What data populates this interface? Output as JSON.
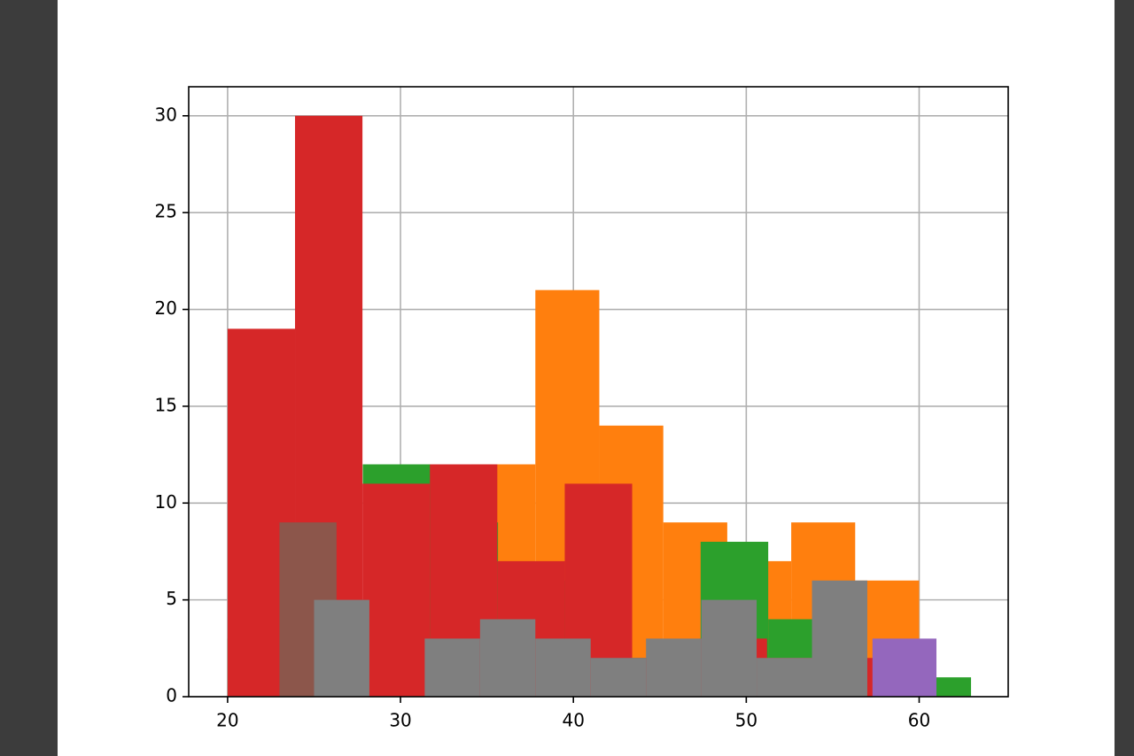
{
  "chart_data": {
    "type": "histogram",
    "xlim": [
      17.75,
      65.15
    ],
    "ylim": [
      0,
      31.5
    ],
    "xticks": [
      20,
      30,
      40,
      50,
      60
    ],
    "yticks": [
      0,
      5,
      10,
      15,
      20,
      25,
      30
    ],
    "grid": true,
    "series": [
      {
        "color": "#ff7f0e",
        "bins": [
          23,
          26.7,
          30.4,
          34.1,
          37.8,
          41.5,
          45.2,
          48.9,
          52.6,
          56.3,
          60
        ],
        "values": [
          2,
          4,
          6,
          12,
          21,
          14,
          9,
          7,
          9,
          6
        ]
      },
      {
        "color": "#2ca02c",
        "bins": [
          20,
          23.91,
          27.82,
          31.73,
          35.64,
          39.55,
          43.45,
          47.36,
          51.27,
          55.18,
          59.09,
          63
        ],
        "values": [
          3,
          5,
          12,
          9,
          6,
          2,
          2,
          8,
          4,
          1,
          1
        ]
      },
      {
        "color": "#d62728",
        "bins": [
          20,
          23.9,
          27.8,
          31.7,
          35.6,
          39.5,
          43.4,
          47.3,
          51.2,
          55.1,
          59
        ],
        "values": [
          19,
          30,
          11,
          12,
          7,
          11,
          2,
          3,
          2,
          2
        ]
      },
      {
        "color": "#9467bd",
        "bins": [
          57.3,
          61.0
        ],
        "values": [
          3
        ]
      },
      {
        "color": "#8c564b",
        "bins": [
          23.0,
          26.3
        ],
        "values": [
          9
        ]
      },
      {
        "color": "#7f7f7f",
        "bins": [
          25,
          28.2,
          31.4,
          34.6,
          37.8,
          41,
          44.2,
          47.4,
          50.6,
          53.8,
          57
        ],
        "values": [
          5,
          0,
          3,
          4,
          3,
          2,
          3,
          5,
          2,
          6
        ]
      }
    ]
  }
}
